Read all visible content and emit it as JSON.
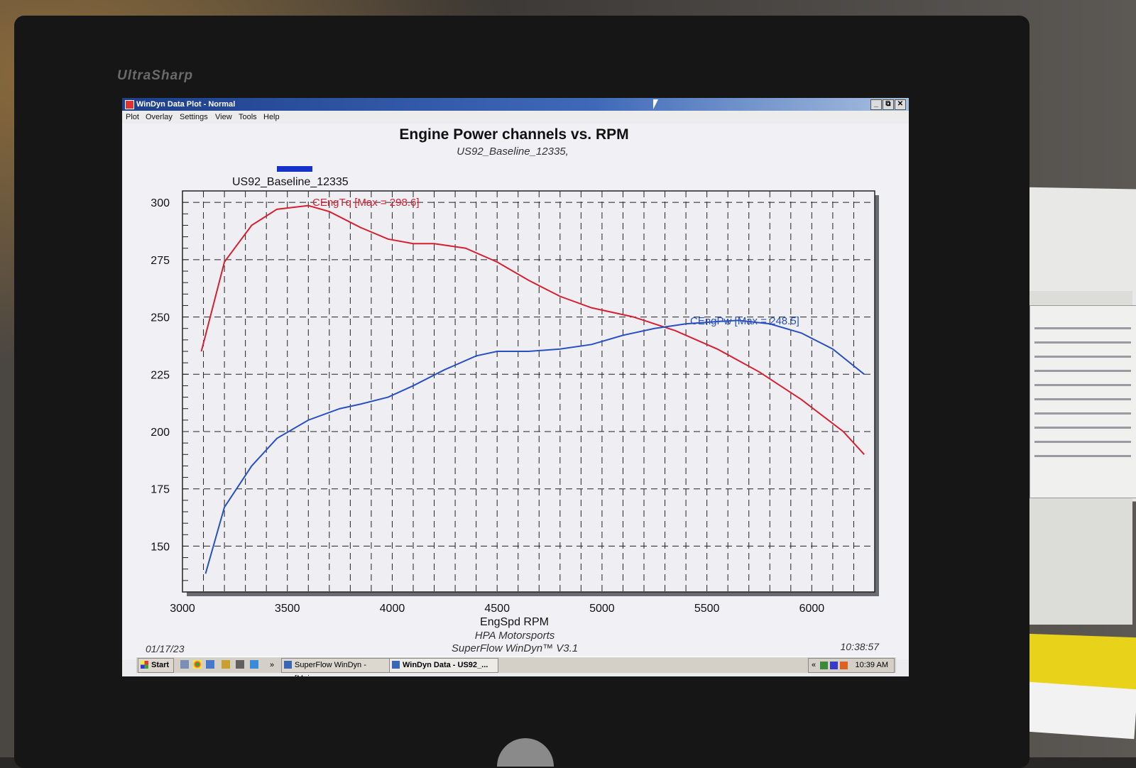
{
  "monitor": {
    "brand": "UltraSharp"
  },
  "window": {
    "title": "WinDyn Data Plot - Normal",
    "buttons": {
      "minimize": "_",
      "restore": "⧉",
      "close": "✕"
    }
  },
  "menu": {
    "items": [
      {
        "label": "Plot"
      },
      {
        "label": "Overlay"
      },
      {
        "label": "Settings"
      },
      {
        "label": "View"
      },
      {
        "label": "Tools"
      },
      {
        "label": "Help"
      }
    ]
  },
  "plot": {
    "footer_left": "01/17/23",
    "footer_center_1": "HPA Motorsports",
    "footer_center_2": "SuperFlow WinDyn™ V3.1",
    "footer_right": "10:38:57"
  },
  "taskbar": {
    "start_label": "Start",
    "chevron": "»",
    "items": [
      {
        "label": "SuperFlow WinDyn - [Mai..."
      },
      {
        "label": "WinDyn Data - US92_..."
      }
    ],
    "tray_chevron": "«",
    "clock": "10:39 AM"
  },
  "chart_data": {
    "type": "line",
    "title": "Engine Power channels vs. RPM",
    "subtitle": "US92_Baseline_12335,",
    "legend_entry": "US92_Baseline_12335",
    "legend_color": "#1432c8",
    "xlabel": "EngSpd RPM",
    "ylabel": "",
    "xlim": [
      3000,
      6300
    ],
    "ylim": [
      130,
      305
    ],
    "xticks": [
      3000,
      3500,
      4000,
      4500,
      5000,
      5500,
      6000
    ],
    "yticks": [
      150,
      175,
      200,
      225,
      250,
      275,
      300
    ],
    "grid": true,
    "series": [
      {
        "name": "CEngTq",
        "annotation": "CEngTq [Max = 298.6]",
        "color": "#d42030",
        "x": [
          3090,
          3200,
          3330,
          3450,
          3600,
          3700,
          3850,
          3980,
          4100,
          4200,
          4350,
          4500,
          4650,
          4800,
          4950,
          5150,
          5350,
          5550,
          5750,
          5950,
          6150,
          6250
        ],
        "y": [
          235,
          274,
          290,
          297,
          298.6,
          296,
          289,
          284,
          282,
          282,
          280,
          274,
          266,
          259,
          254,
          250,
          244,
          236,
          226,
          214,
          200,
          190
        ]
      },
      {
        "name": "CEngPw",
        "annotation": "CEngPw [Max = 248.5]",
        "color": "#2850c0",
        "x": [
          3110,
          3200,
          3330,
          3450,
          3600,
          3750,
          3850,
          3980,
          4100,
          4250,
          4400,
          4500,
          4650,
          4800,
          4950,
          5100,
          5250,
          5400,
          5550,
          5650,
          5800,
          5950,
          6100,
          6250
        ],
        "y": [
          138,
          167,
          185,
          197,
          205,
          210,
          212,
          215,
          220,
          227,
          233,
          235,
          235,
          236,
          238,
          242,
          245,
          247,
          248,
          248.5,
          247,
          243,
          236,
          225
        ]
      }
    ]
  }
}
